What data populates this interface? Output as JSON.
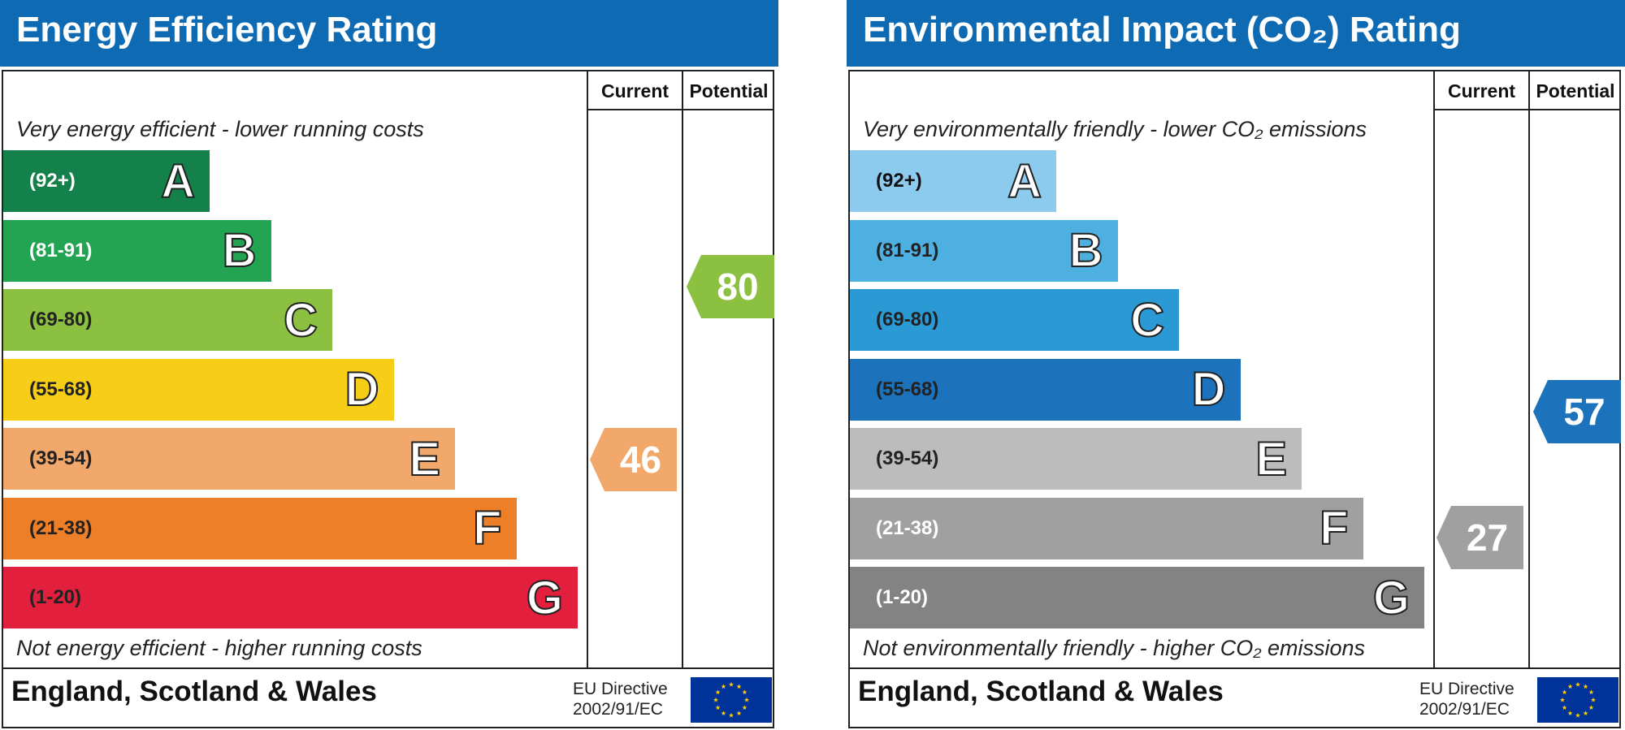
{
  "colors": {
    "header_bg": "#0d6ab3",
    "eu_flag_blue": "#003399",
    "eu_flag_star": "#ffcc00"
  },
  "chart_data": [
    {
      "type": "bar",
      "title": "Energy Efficiency Rating",
      "column_headers": [
        "Current",
        "Potential"
      ],
      "top_caption": "Very energy efficient - lower running costs",
      "bottom_caption": "Not energy efficient - higher running costs",
      "categories": [
        "A",
        "B",
        "C",
        "D",
        "E",
        "F",
        "G"
      ],
      "ranges": [
        "(92+)",
        "(81-91)",
        "(69-80)",
        "(55-68)",
        "(39-54)",
        "(21-38)",
        "(1-20)"
      ],
      "band_colors": [
        "#138149",
        "#22a452",
        "#8cc040",
        "#f6cd17",
        "#f2a86a",
        "#ec7f27",
        "#e21f3c"
      ],
      "range_text_colors": [
        "#ffffff",
        "#ffffff",
        "#222222",
        "#222222",
        "#222222",
        "#222222",
        "#222222"
      ],
      "current": {
        "value": 46,
        "band": "E",
        "color": "#f2a86a"
      },
      "potential": {
        "value": 80,
        "band": "C",
        "color": "#8cc040"
      },
      "footer": "England, Scotland & Wales",
      "directive": [
        "EU Directive",
        "2002/91/EC"
      ]
    },
    {
      "type": "bar",
      "title": "Environmental Impact (CO₂) Rating",
      "column_headers": [
        "Current",
        "Potential"
      ],
      "top_caption": "Very environmentally friendly - lower CO₂ emissions",
      "bottom_caption": "Not environmentally friendly - higher CO₂ emissions",
      "categories": [
        "A",
        "B",
        "C",
        "D",
        "E",
        "F",
        "G"
      ],
      "ranges": [
        "(92+)",
        "(81-91)",
        "(69-80)",
        "(55-68)",
        "(39-54)",
        "(21-38)",
        "(1-20)"
      ],
      "band_colors": [
        "#8ccbee",
        "#4eb0e1",
        "#2b9ad4",
        "#1c72bb",
        "#bcbcbc",
        "#a0a0a0",
        "#838383"
      ],
      "range_text_colors": [
        "#111111",
        "#222222",
        "#222222",
        "#222222",
        "#222222",
        "#ffffff",
        "#ffffff"
      ],
      "current": {
        "value": 27,
        "band": "F",
        "color": "#a0a0a0"
      },
      "potential": {
        "value": 57,
        "band": "D",
        "color": "#1c72bb"
      },
      "footer": "England, Scotland & Wales",
      "directive": [
        "EU Directive",
        "2002/91/EC"
      ]
    }
  ]
}
